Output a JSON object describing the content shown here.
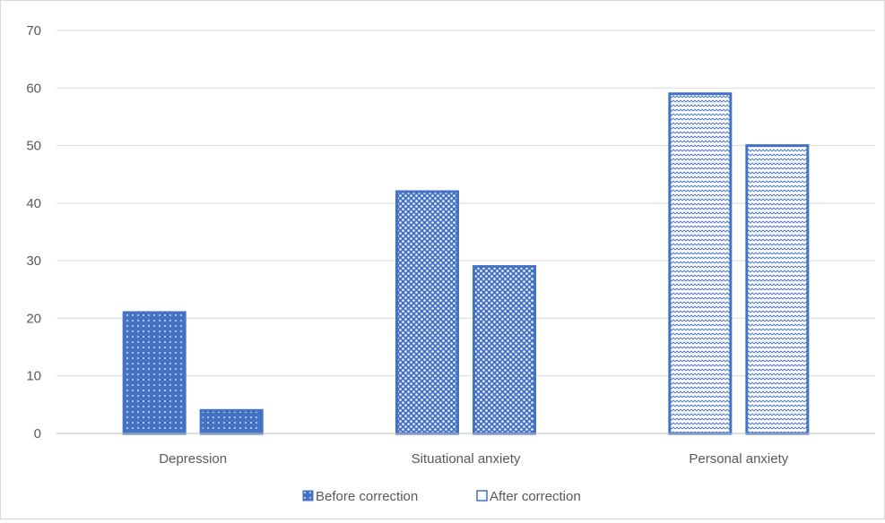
{
  "chart_data": {
    "type": "bar",
    "categories": [
      "Depression",
      "Situational anxiety",
      "Personal anxiety"
    ],
    "series": [
      {
        "name": "Before correction",
        "values": [
          21,
          42,
          59
        ]
      },
      {
        "name": "After correction",
        "values": [
          4,
          29,
          50
        ]
      }
    ],
    "ylim": [
      0,
      70
    ],
    "y_ticks": [
      "0",
      "10",
      "20",
      "30",
      "40",
      "50",
      "60",
      "70"
    ],
    "grid": true,
    "legend_position": "bottom",
    "colors": {
      "bar": "#4472c4",
      "grid": "#d9d9d9",
      "text": "#595959"
    }
  }
}
